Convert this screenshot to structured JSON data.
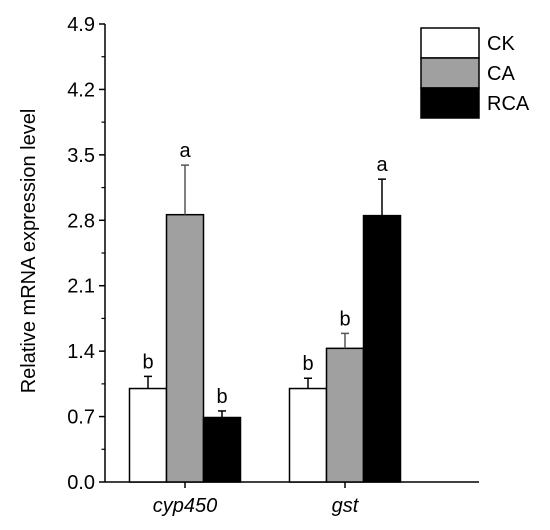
{
  "chart_data": {
    "type": "bar",
    "title": "",
    "xlabel": "",
    "ylabel": "Relative mRNA expression level",
    "ylim": [
      0,
      4.9
    ],
    "yticks": [
      "0.0",
      "0.7",
      "1.4",
      "2.1",
      "2.8",
      "3.5",
      "4.2",
      "4.9"
    ],
    "categories": [
      "cyp450",
      "gst"
    ],
    "series": [
      {
        "name": "CK",
        "color": "#ffffff",
        "values": [
          1.0,
          1.0
        ],
        "errors": [
          0.13,
          0.11
        ],
        "labels": [
          "b",
          "b"
        ]
      },
      {
        "name": "CA",
        "color": "#a0a0a0",
        "values": [
          2.86,
          1.43
        ],
        "errors": [
          0.53,
          0.16
        ],
        "labels": [
          "a",
          "b"
        ]
      },
      {
        "name": "RCA",
        "color": "#000000",
        "values": [
          0.69,
          2.85
        ],
        "errors": [
          0.07,
          0.39
        ],
        "labels": [
          "b",
          "a"
        ]
      }
    ],
    "legend_position": "top-right",
    "grid": false
  }
}
